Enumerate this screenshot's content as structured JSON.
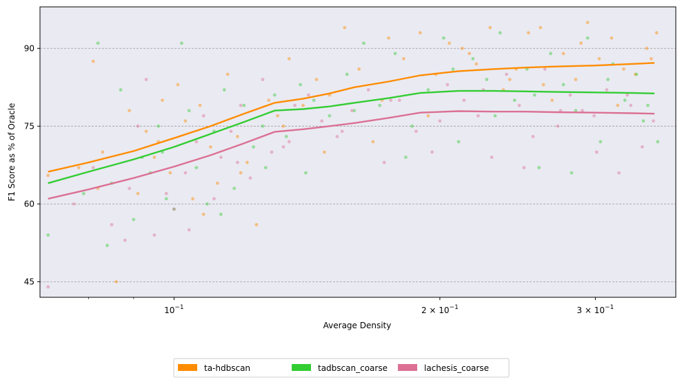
{
  "chart_data": {
    "type": "scatter",
    "title": "",
    "xlabel": "Average Density",
    "ylabel": "F1 Score as % of Oracle",
    "xscale": "log",
    "xlim": [
      0.0705,
      0.37
    ],
    "ylim": [
      42,
      98
    ],
    "grid": "horizontal-dashed",
    "background": "#eaeaf2",
    "legend_position": "bottom-center",
    "x_ticks": [
      {
        "value": 0.1,
        "label": "10",
        "exp": "−1"
      },
      {
        "value": 0.2,
        "label": "2 × 10",
        "exp": "−1"
      },
      {
        "value": 0.3,
        "label": "3 × 10",
        "exp": "−1"
      }
    ],
    "y_ticks": [
      {
        "value": 45,
        "label": "45"
      },
      {
        "value": 60,
        "label": "60"
      },
      {
        "value": 75,
        "label": "75"
      },
      {
        "value": 90,
        "label": "90"
      }
    ],
    "series": [
      {
        "name": "ta-hdbscan",
        "color": "#ff8c00",
        "trend": {
          "x": [
            0.072,
            0.08,
            0.09,
            0.1,
            0.11,
            0.12,
            0.13,
            0.14,
            0.15,
            0.16,
            0.175,
            0.19,
            0.21,
            0.23,
            0.25,
            0.27,
            0.3,
            0.33,
            0.35
          ],
          "y": [
            66.2,
            68.0,
            70.2,
            72.7,
            75.0,
            77.4,
            79.5,
            80.3,
            81.3,
            82.5,
            83.6,
            84.8,
            85.6,
            86.0,
            86.3,
            86.5,
            86.7,
            87.0,
            87.2
          ]
        },
        "points": {
          "x": [
            0.072,
            0.078,
            0.081,
            0.083,
            0.086,
            0.089,
            0.091,
            0.093,
            0.095,
            0.097,
            0.099,
            0.101,
            0.103,
            0.105,
            0.107,
            0.11,
            0.112,
            0.115,
            0.118,
            0.121,
            0.124,
            0.128,
            0.131,
            0.135,
            0.14,
            0.145,
            0.15,
            0.156,
            0.162,
            0.168,
            0.175,
            0.182,
            0.19,
            0.198,
            0.205,
            0.212,
            0.22,
            0.228,
            0.236,
            0.244,
            0.252,
            0.26,
            0.268,
            0.276,
            0.285,
            0.294,
            0.303,
            0.313,
            0.323,
            0.333,
            0.343,
            0.352,
            0.082,
            0.096,
            0.108,
            0.119,
            0.133,
            0.148,
            0.172,
            0.194,
            0.216,
            0.24,
            0.262,
            0.289,
            0.318,
            0.347
          ],
          "y": [
            65.5,
            67.0,
            87.5,
            70.0,
            45.0,
            78.0,
            62.0,
            74.0,
            69.0,
            80.0,
            66.0,
            83.0,
            76.0,
            61.0,
            79.0,
            71.0,
            64.0,
            85.0,
            73.0,
            68.0,
            56.0,
            80.0,
            77.0,
            88.0,
            79.0,
            84.0,
            81.0,
            94.0,
            86.0,
            72.0,
            92.0,
            88.0,
            93.0,
            85.0,
            91.0,
            90.0,
            87.0,
            94.0,
            82.0,
            86.0,
            93.0,
            94.0,
            80.0,
            89.0,
            84.0,
            95.0,
            88.0,
            92.0,
            86.0,
            85.0,
            90.0,
            93.0,
            63.0,
            72.0,
            58.0,
            66.0,
            75.0,
            70.0,
            80.0,
            77.0,
            89.0,
            84.0,
            83.0,
            91.0,
            79.0,
            88.0
          ]
        }
      },
      {
        "name": "tadbscan_coarse",
        "color": "#32cd32",
        "trend": {
          "x": [
            0.072,
            0.08,
            0.09,
            0.1,
            0.11,
            0.12,
            0.13,
            0.14,
            0.15,
            0.16,
            0.175,
            0.19,
            0.21,
            0.23,
            0.25,
            0.27,
            0.3,
            0.33,
            0.35
          ],
          "y": [
            64.0,
            66.2,
            68.6,
            71.0,
            73.5,
            75.8,
            78.0,
            78.3,
            78.8,
            79.5,
            80.4,
            81.4,
            81.8,
            81.8,
            81.7,
            81.6,
            81.5,
            81.4,
            81.3
          ]
        },
        "points": {
          "x": [
            0.072,
            0.079,
            0.082,
            0.084,
            0.087,
            0.09,
            0.092,
            0.094,
            0.096,
            0.098,
            0.1,
            0.102,
            0.104,
            0.106,
            0.109,
            0.111,
            0.114,
            0.117,
            0.12,
            0.123,
            0.127,
            0.13,
            0.134,
            0.139,
            0.144,
            0.15,
            0.157,
            0.164,
            0.171,
            0.178,
            0.186,
            0.194,
            0.202,
            0.21,
            0.218,
            0.226,
            0.234,
            0.243,
            0.251,
            0.259,
            0.267,
            0.276,
            0.285,
            0.294,
            0.304,
            0.314,
            0.324,
            0.334,
            0.344,
            0.353,
            0.085,
            0.097,
            0.113,
            0.126,
            0.141,
            0.16,
            0.183,
            0.207,
            0.231,
            0.256,
            0.282,
            0.31,
            0.34
          ],
          "y": [
            54.0,
            62.0,
            91.0,
            52.0,
            82.0,
            57.0,
            69.0,
            66.0,
            75.0,
            61.0,
            59.0,
            91.0,
            78.0,
            67.0,
            60.0,
            74.0,
            82.0,
            63.0,
            79.0,
            71.0,
            67.0,
            81.0,
            73.0,
            83.0,
            80.0,
            77.0,
            85.0,
            91.0,
            79.0,
            89.0,
            75.0,
            82.0,
            92.0,
            72.0,
            88.0,
            84.0,
            93.0,
            80.0,
            86.0,
            67.0,
            89.0,
            83.0,
            78.0,
            92.0,
            72.0,
            87.0,
            80.0,
            85.0,
            79.0,
            72.0,
            64.0,
            70.0,
            58.0,
            75.0,
            66.0,
            78.0,
            69.0,
            86.0,
            77.0,
            81.0,
            66.0,
            84.0,
            76.0
          ]
        }
      },
      {
        "name": "lachesis_coarse",
        "color": "#db7093",
        "trend": {
          "x": [
            0.072,
            0.08,
            0.09,
            0.1,
            0.11,
            0.12,
            0.13,
            0.14,
            0.15,
            0.16,
            0.175,
            0.19,
            0.21,
            0.23,
            0.25,
            0.27,
            0.3,
            0.33,
            0.35
          ],
          "y": [
            61.0,
            62.8,
            65.0,
            67.2,
            69.4,
            71.7,
            73.9,
            74.4,
            75.0,
            75.6,
            76.6,
            77.6,
            77.9,
            77.8,
            77.8,
            77.7,
            77.6,
            77.5,
            77.4
          ]
        },
        "points": {
          "x": [
            0.072,
            0.077,
            0.081,
            0.085,
            0.088,
            0.091,
            0.093,
            0.095,
            0.098,
            0.1,
            0.103,
            0.106,
            0.108,
            0.111,
            0.113,
            0.116,
            0.119,
            0.122,
            0.126,
            0.129,
            0.133,
            0.137,
            0.142,
            0.147,
            0.153,
            0.159,
            0.166,
            0.173,
            0.18,
            0.188,
            0.196,
            0.204,
            0.213,
            0.221,
            0.229,
            0.238,
            0.246,
            0.255,
            0.263,
            0.272,
            0.281,
            0.29,
            0.299,
            0.309,
            0.319,
            0.329,
            0.339,
            0.349,
            0.089,
            0.104,
            0.118,
            0.135,
            0.155,
            0.176,
            0.2,
            0.224,
            0.249,
            0.274,
            0.301,
            0.326
          ],
          "y": [
            44.0,
            60.0,
            67.0,
            56.0,
            53.0,
            75.0,
            84.0,
            54.0,
            62.0,
            59.0,
            66.0,
            72.0,
            77.0,
            61.0,
            69.0,
            74.0,
            79.0,
            65.0,
            84.0,
            70.0,
            71.0,
            79.0,
            81.0,
            76.0,
            73.0,
            78.0,
            82.0,
            68.0,
            80.0,
            74.0,
            70.0,
            83.0,
            80.0,
            77.0,
            69.0,
            85.0,
            79.0,
            73.0,
            86.0,
            75.0,
            81.0,
            78.0,
            77.0,
            82.0,
            66.0,
            79.0,
            71.0,
            76.0,
            63.0,
            55.0,
            68.0,
            72.0,
            74.0,
            80.0,
            76.0,
            82.0,
            67.0,
            78.0,
            70.0,
            81.0
          ]
        }
      }
    ]
  }
}
